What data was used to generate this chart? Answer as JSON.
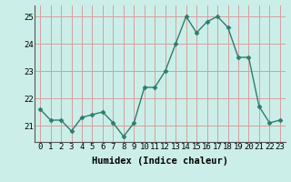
{
  "x": [
    0,
    1,
    2,
    3,
    4,
    5,
    6,
    7,
    8,
    9,
    10,
    11,
    12,
    13,
    14,
    15,
    16,
    17,
    18,
    19,
    20,
    21,
    22,
    23
  ],
  "y": [
    21.6,
    21.2,
    21.2,
    20.8,
    21.3,
    21.4,
    21.5,
    21.1,
    20.6,
    21.1,
    22.4,
    22.4,
    23.0,
    24.0,
    25.0,
    24.4,
    24.8,
    25.0,
    24.6,
    23.5,
    23.5,
    21.7,
    21.1,
    21.2
  ],
  "line_color": "#2d7d6e",
  "marker": "D",
  "marker_size": 2.5,
  "bg_color": "#cceee8",
  "grid_color": "#d4a0a0",
  "xlabel": "Humidex (Indice chaleur)",
  "ylim": [
    20.4,
    25.4
  ],
  "xlim": [
    -0.5,
    23.5
  ],
  "yticks": [
    21,
    22,
    23,
    24,
    25
  ],
  "xticks": [
    0,
    1,
    2,
    3,
    4,
    5,
    6,
    7,
    8,
    9,
    10,
    11,
    12,
    13,
    14,
    15,
    16,
    17,
    18,
    19,
    20,
    21,
    22,
    23
  ],
  "xlabel_fontsize": 7.5,
  "tick_fontsize": 6.5,
  "linewidth": 1.0
}
